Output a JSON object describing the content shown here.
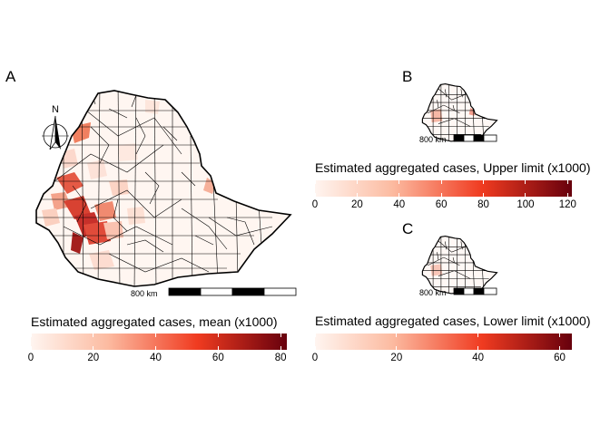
{
  "panels": {
    "a": {
      "letter": "A",
      "scale_label": "800 km"
    },
    "b": {
      "letter": "B",
      "scale_label": "800 km"
    },
    "c": {
      "letter": "C",
      "scale_label": "800 km"
    }
  },
  "north_arrow": {
    "label": "N"
  },
  "legends": {
    "mean": {
      "title": "Estimated aggregated cases, mean (x1000)",
      "ticks": [
        "0",
        "20",
        "40",
        "60",
        "80"
      ],
      "tick_values": [
        0,
        20,
        40,
        60,
        80
      ],
      "max": 82
    },
    "upper": {
      "title": "Estimated aggregated cases, Upper limit (x1000)",
      "ticks": [
        "0",
        "20",
        "40",
        "60",
        "80",
        "100",
        "120"
      ],
      "tick_values": [
        0,
        20,
        40,
        60,
        80,
        100,
        120
      ],
      "max": 122
    },
    "lower": {
      "title": "Estimated aggregated cases, Lower limit (x1000)",
      "ticks": [
        "0",
        "20",
        "40",
        "60"
      ],
      "tick_values": [
        0,
        20,
        40,
        60
      ],
      "max": 63
    }
  },
  "colors": {
    "low": "#fff5f0",
    "mid": "#f03b20",
    "high": "#67000d",
    "border": "#000000"
  }
}
